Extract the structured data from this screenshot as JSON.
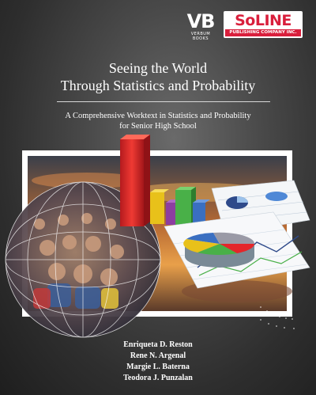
{
  "publishers": {
    "vb": {
      "mark": "VB",
      "sub": "VERBUM BOOKS"
    },
    "soline": {
      "mark": "SoLINE",
      "sub": "PUBLISHING COMPANY INC."
    }
  },
  "title": {
    "line1": "Seeing the World",
    "line2": "Through Statistics and Probability"
  },
  "subtitle": {
    "line1": "A Comprehensive Worktext in Statistics and Probability",
    "line2": "for Senior High School"
  },
  "authors": [
    "Enriqueta D. Reston",
    "Rene N. Argenal",
    "Margie L. Baterna",
    "Teodora J. Punzalan"
  ],
  "colors": {
    "background": "#3e3e3e",
    "soline_red": "#d91f3c",
    "bar_red": "#e4262a",
    "bar_yellow": "#e8c11a",
    "bar_green": "#49b048",
    "bar_purple": "#8c3ea0",
    "bar_blue": "#3a6fc1"
  }
}
